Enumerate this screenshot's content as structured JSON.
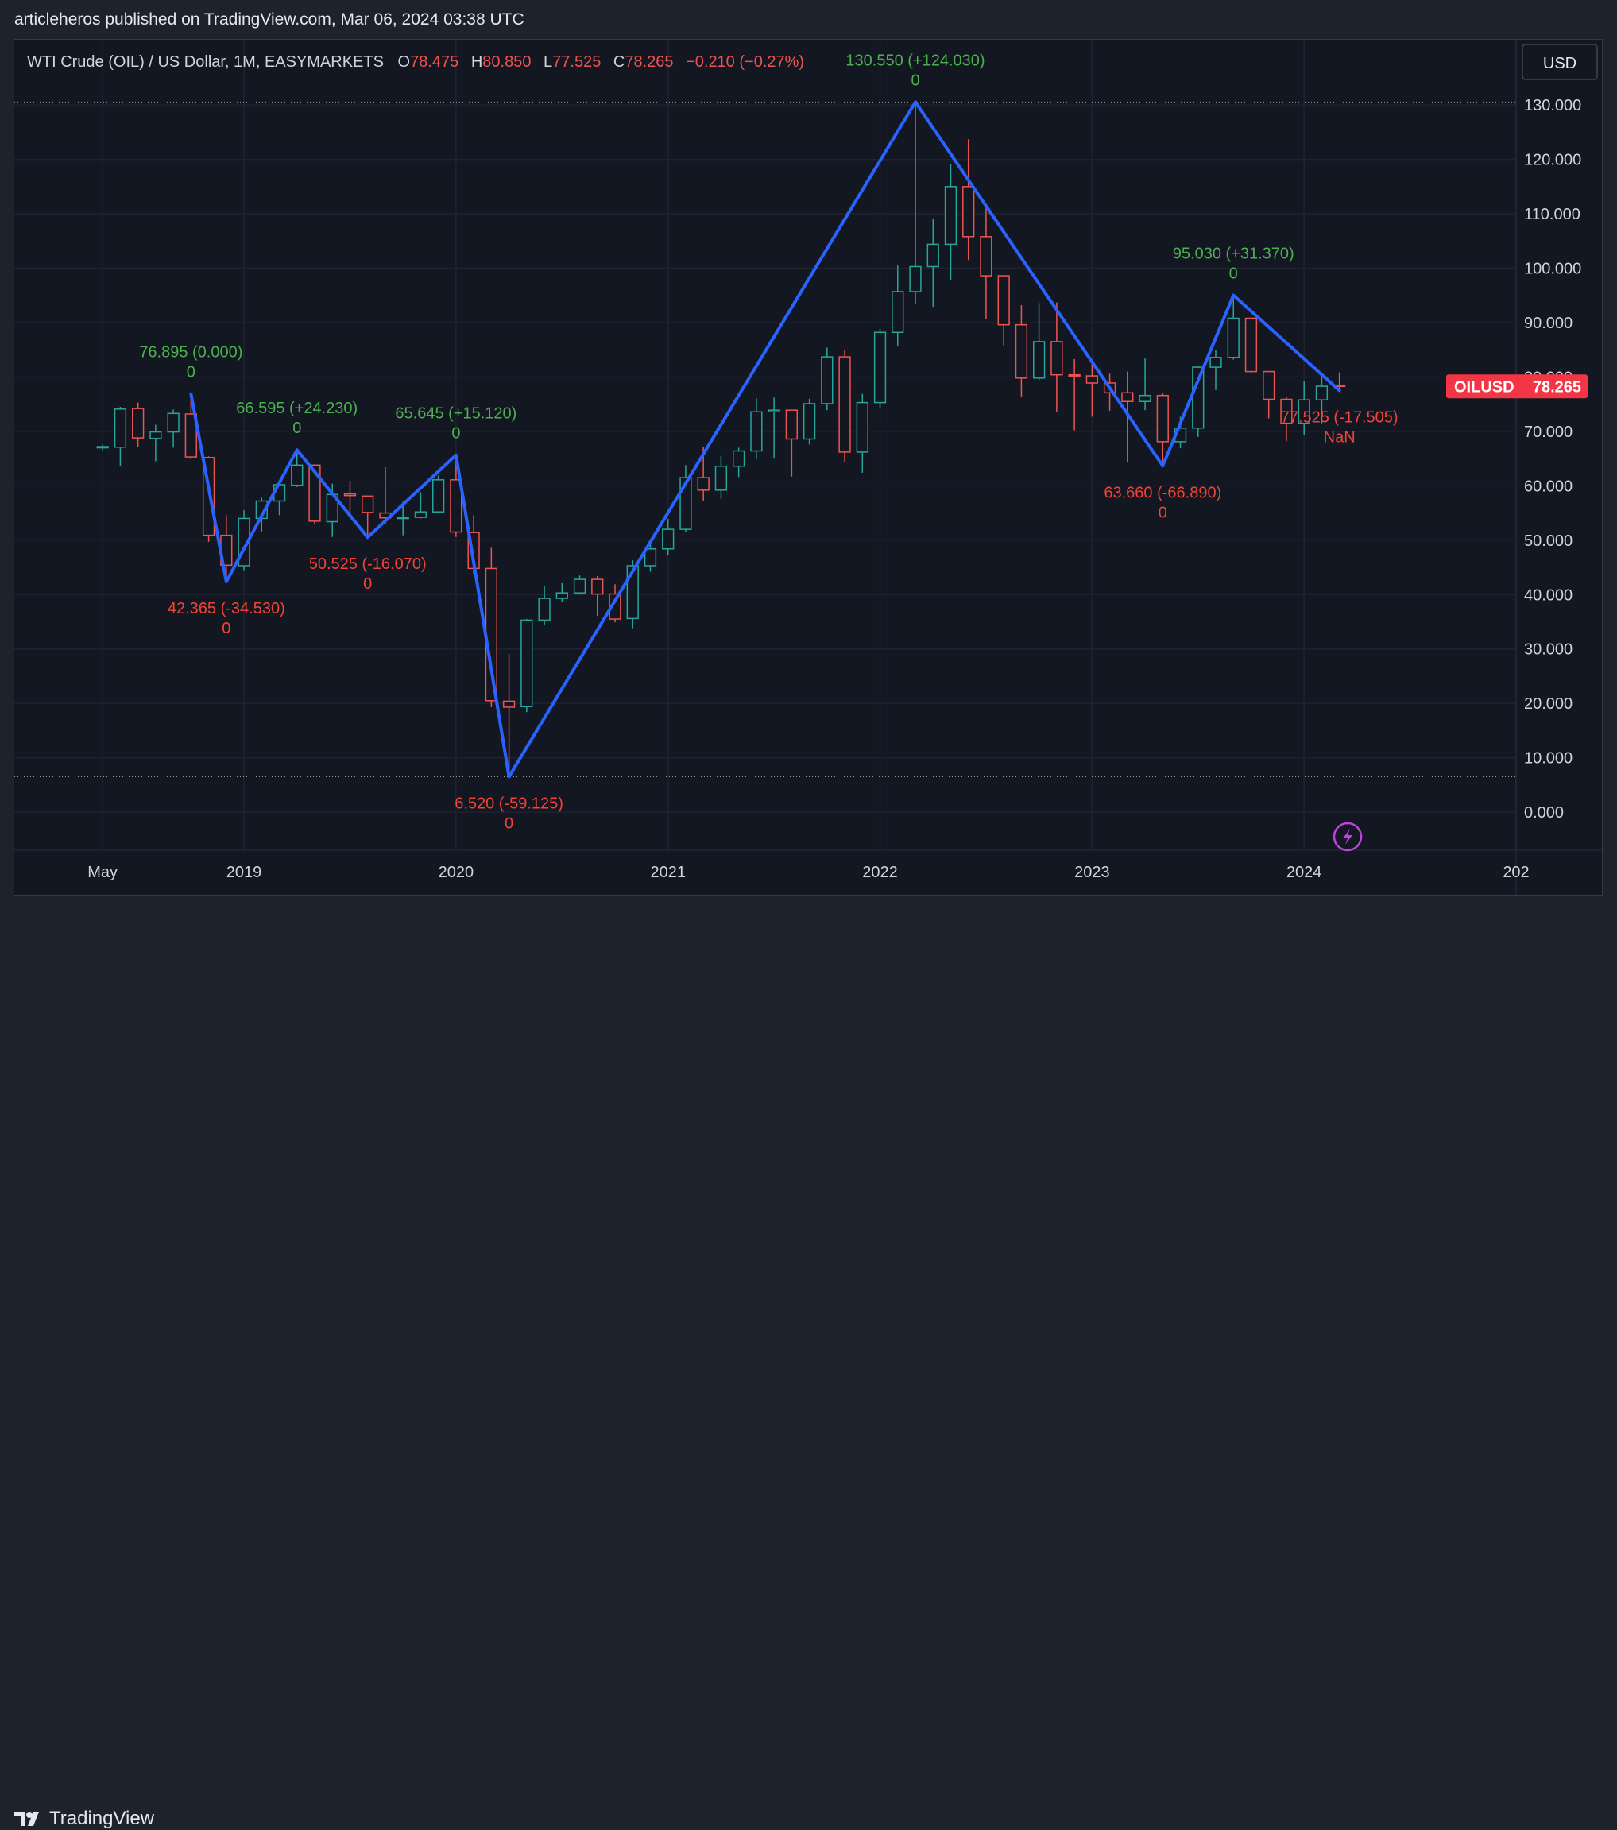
{
  "attribution": "articleheros published on TradingView.com, Mar 06, 2024 03:38 UTC",
  "legend": {
    "symbol": "WTI Crude (OIL) / US Dollar, 1M, EASYMARKETS",
    "o_label": "O",
    "o_value": "78.475",
    "h_label": "H",
    "h_value": "80.850",
    "l_label": "L",
    "l_value": "77.525",
    "c_label": "C",
    "c_value": "78.265",
    "change": "−0.210 (−0.27%)"
  },
  "currency_button": "USD",
  "price_badge": {
    "symbol": "OILUSD",
    "value": "78.265"
  },
  "branding": "TradingView",
  "colors": {
    "up": "#26a69a",
    "down": "#ef5350",
    "zigzag": "#2962ff",
    "label_up": "#4caf50",
    "label_down": "#f44336"
  },
  "chart_data": {
    "type": "candlestick",
    "interval": "1M",
    "y_ticks": [
      "130.000",
      "120.000",
      "110.000",
      "100.000",
      "90.000",
      "80.000",
      "70.000",
      "60.000",
      "50.000",
      "40.000",
      "30.000",
      "20.000",
      "10.000",
      "0.000"
    ],
    "x_ticks": [
      "May",
      "2019",
      "2020",
      "2021",
      "2022",
      "2023",
      "2024",
      "202"
    ],
    "ylim": [
      -7,
      142
    ],
    "xlim": [
      "2017-12",
      "2025-01"
    ],
    "grid": true,
    "candles": [
      {
        "t": "2018-05",
        "o": 67.2,
        "h": 67.6,
        "l": 66.5,
        "c": 67.2
      },
      {
        "t": "2018-06",
        "o": 67.1,
        "h": 74.5,
        "l": 63.6,
        "c": 74.1
      },
      {
        "t": "2018-07",
        "o": 74.2,
        "h": 75.3,
        "l": 67.1,
        "c": 68.8
      },
      {
        "t": "2018-08",
        "o": 68.7,
        "h": 71.2,
        "l": 64.5,
        "c": 69.9
      },
      {
        "t": "2018-09",
        "o": 69.9,
        "h": 74.0,
        "l": 67.0,
        "c": 73.3
      },
      {
        "t": "2018-10",
        "o": 73.2,
        "h": 76.9,
        "l": 64.9,
        "c": 65.3
      },
      {
        "t": "2018-11",
        "o": 65.2,
        "h": 65.4,
        "l": 49.7,
        "c": 50.9
      },
      {
        "t": "2018-12",
        "o": 50.9,
        "h": 54.6,
        "l": 42.4,
        "c": 45.4
      },
      {
        "t": "2019-01",
        "o": 45.3,
        "h": 55.5,
        "l": 44.5,
        "c": 54.0
      },
      {
        "t": "2019-02",
        "o": 54.0,
        "h": 57.8,
        "l": 51.6,
        "c": 57.2
      },
      {
        "t": "2019-03",
        "o": 57.2,
        "h": 60.8,
        "l": 54.6,
        "c": 60.2
      },
      {
        "t": "2019-04",
        "o": 60.1,
        "h": 66.6,
        "l": 59.8,
        "c": 63.8
      },
      {
        "t": "2019-05",
        "o": 63.8,
        "h": 63.9,
        "l": 53.0,
        "c": 53.5
      },
      {
        "t": "2019-06",
        "o": 53.4,
        "h": 60.4,
        "l": 50.6,
        "c": 58.4
      },
      {
        "t": "2019-07",
        "o": 58.5,
        "h": 60.9,
        "l": 54.5,
        "c": 58.2
      },
      {
        "t": "2019-08",
        "o": 58.1,
        "h": 58.2,
        "l": 50.5,
        "c": 55.1
      },
      {
        "t": "2019-09",
        "o": 55.0,
        "h": 63.4,
        "l": 52.9,
        "c": 54.1
      },
      {
        "t": "2019-10",
        "o": 54.0,
        "h": 57.1,
        "l": 50.9,
        "c": 54.2
      },
      {
        "t": "2019-11",
        "o": 54.2,
        "h": 58.8,
        "l": 54.0,
        "c": 55.2
      },
      {
        "t": "2019-12",
        "o": 55.2,
        "h": 61.9,
        "l": 55.0,
        "c": 61.1
      },
      {
        "t": "2020-01",
        "o": 61.1,
        "h": 65.6,
        "l": 50.6,
        "c": 51.5
      },
      {
        "t": "2020-02",
        "o": 51.4,
        "h": 54.6,
        "l": 43.8,
        "c": 44.8
      },
      {
        "t": "2020-03",
        "o": 44.8,
        "h": 48.6,
        "l": 19.3,
        "c": 20.5
      },
      {
        "t": "2020-04",
        "o": 20.4,
        "h": 29.1,
        "l": 6.5,
        "c": 19.3
      },
      {
        "t": "2020-05",
        "o": 19.4,
        "h": 35.5,
        "l": 18.4,
        "c": 35.3
      },
      {
        "t": "2020-06",
        "o": 35.3,
        "h": 41.6,
        "l": 34.4,
        "c": 39.3
      },
      {
        "t": "2020-07",
        "o": 39.3,
        "h": 42.1,
        "l": 38.7,
        "c": 40.3
      },
      {
        "t": "2020-08",
        "o": 40.3,
        "h": 43.5,
        "l": 40.0,
        "c": 42.8
      },
      {
        "t": "2020-09",
        "o": 42.8,
        "h": 43.4,
        "l": 36.1,
        "c": 40.1
      },
      {
        "t": "2020-10",
        "o": 40.1,
        "h": 41.9,
        "l": 34.9,
        "c": 35.5
      },
      {
        "t": "2020-11",
        "o": 35.6,
        "h": 46.3,
        "l": 33.8,
        "c": 45.3
      },
      {
        "t": "2020-12",
        "o": 45.3,
        "h": 49.4,
        "l": 44.2,
        "c": 48.4
      },
      {
        "t": "2021-01",
        "o": 48.4,
        "h": 53.9,
        "l": 47.3,
        "c": 52.0
      },
      {
        "t": "2021-02",
        "o": 52.0,
        "h": 63.8,
        "l": 51.5,
        "c": 61.5
      },
      {
        "t": "2021-03",
        "o": 61.5,
        "h": 67.1,
        "l": 57.3,
        "c": 59.2
      },
      {
        "t": "2021-04",
        "o": 59.2,
        "h": 65.5,
        "l": 57.6,
        "c": 63.6
      },
      {
        "t": "2021-05",
        "o": 63.6,
        "h": 67.0,
        "l": 61.6,
        "c": 66.4
      },
      {
        "t": "2021-06",
        "o": 66.4,
        "h": 76.1,
        "l": 64.9,
        "c": 73.6
      },
      {
        "t": "2021-07",
        "o": 73.6,
        "h": 76.2,
        "l": 65.0,
        "c": 73.9
      },
      {
        "t": "2021-08",
        "o": 73.9,
        "h": 74.0,
        "l": 61.7,
        "c": 68.6
      },
      {
        "t": "2021-09",
        "o": 68.6,
        "h": 76.0,
        "l": 67.6,
        "c": 75.1
      },
      {
        "t": "2021-10",
        "o": 75.1,
        "h": 85.4,
        "l": 73.9,
        "c": 83.7
      },
      {
        "t": "2021-11",
        "o": 83.7,
        "h": 84.9,
        "l": 64.4,
        "c": 66.2
      },
      {
        "t": "2021-12",
        "o": 66.2,
        "h": 76.9,
        "l": 62.4,
        "c": 75.3
      },
      {
        "t": "2022-01",
        "o": 75.3,
        "h": 88.8,
        "l": 74.3,
        "c": 88.2
      },
      {
        "t": "2022-02",
        "o": 88.2,
        "h": 100.5,
        "l": 85.7,
        "c": 95.7
      },
      {
        "t": "2022-03",
        "o": 95.7,
        "h": 130.55,
        "l": 93.5,
        "c": 100.3
      },
      {
        "t": "2022-04",
        "o": 100.3,
        "h": 109.0,
        "l": 92.9,
        "c": 104.4
      },
      {
        "t": "2022-05",
        "o": 104.4,
        "h": 119.2,
        "l": 97.8,
        "c": 115.0
      },
      {
        "t": "2022-06",
        "o": 115.0,
        "h": 123.7,
        "l": 101.5,
        "c": 105.8
      },
      {
        "t": "2022-07",
        "o": 105.8,
        "h": 111.0,
        "l": 90.6,
        "c": 98.6
      },
      {
        "t": "2022-08",
        "o": 98.6,
        "h": 97.6,
        "l": 85.8,
        "c": 89.6
      },
      {
        "t": "2022-09",
        "o": 89.6,
        "h": 93.2,
        "l": 76.4,
        "c": 79.8
      },
      {
        "t": "2022-10",
        "o": 79.8,
        "h": 93.6,
        "l": 79.4,
        "c": 86.5
      },
      {
        "t": "2022-11",
        "o": 86.5,
        "h": 93.7,
        "l": 73.6,
        "c": 80.4
      },
      {
        "t": "2022-12",
        "o": 80.4,
        "h": 83.3,
        "l": 70.2,
        "c": 80.2
      },
      {
        "t": "2023-01",
        "o": 80.2,
        "h": 82.6,
        "l": 72.7,
        "c": 78.9
      },
      {
        "t": "2023-02",
        "o": 78.9,
        "h": 80.6,
        "l": 73.8,
        "c": 77.1
      },
      {
        "t": "2023-03",
        "o": 77.1,
        "h": 81.0,
        "l": 64.4,
        "c": 75.5
      },
      {
        "t": "2023-04",
        "o": 75.5,
        "h": 83.4,
        "l": 73.9,
        "c": 76.6
      },
      {
        "t": "2023-05",
        "o": 76.6,
        "h": 77.0,
        "l": 63.66,
        "c": 68.1
      },
      {
        "t": "2023-06",
        "o": 68.1,
        "h": 72.7,
        "l": 66.9,
        "c": 70.6
      },
      {
        "t": "2023-07",
        "o": 70.6,
        "h": 82.0,
        "l": 69.0,
        "c": 81.8
      },
      {
        "t": "2023-08",
        "o": 81.8,
        "h": 84.9,
        "l": 77.6,
        "c": 83.6
      },
      {
        "t": "2023-09",
        "o": 83.6,
        "h": 95.03,
        "l": 83.2,
        "c": 90.8
      },
      {
        "t": "2023-10",
        "o": 90.8,
        "h": 90.4,
        "l": 80.6,
        "c": 81.0
      },
      {
        "t": "2023-11",
        "o": 81.0,
        "h": 80.1,
        "l": 72.4,
        "c": 75.9
      },
      {
        "t": "2023-12",
        "o": 75.9,
        "h": 76.3,
        "l": 68.2,
        "c": 71.5
      },
      {
        "t": "2024-01",
        "o": 71.5,
        "h": 79.2,
        "l": 69.3,
        "c": 75.8
      },
      {
        "t": "2024-02",
        "o": 75.8,
        "h": 80.6,
        "l": 71.5,
        "c": 78.3
      },
      {
        "t": "2024-03",
        "o": 78.5,
        "h": 80.85,
        "l": 77.53,
        "c": 78.27
      }
    ],
    "zigzag": [
      {
        "t": "2018-10",
        "v": 76.895
      },
      {
        "t": "2018-12",
        "v": 42.365
      },
      {
        "t": "2019-04",
        "v": 66.595
      },
      {
        "t": "2019-08",
        "v": 50.525
      },
      {
        "t": "2020-01",
        "v": 65.645
      },
      {
        "t": "2020-04",
        "v": 6.52
      },
      {
        "t": "2022-03",
        "v": 130.55
      },
      {
        "t": "2023-05",
        "v": 63.66
      },
      {
        "t": "2023-09",
        "v": 95.03
      },
      {
        "t": "2024-03",
        "v": 77.525
      }
    ],
    "pivot_labels": [
      {
        "text": "76.895 (0.000)",
        "sub": "0",
        "dir": "up",
        "t": "2018-10",
        "v": 76.895
      },
      {
        "text": "42.365 (-34.530)",
        "sub": "0",
        "dir": "down",
        "t": "2018-12",
        "v": 42.365
      },
      {
        "text": "66.595 (+24.230)",
        "sub": "0",
        "dir": "up",
        "t": "2019-04",
        "v": 66.595
      },
      {
        "text": "50.525 (-16.070)",
        "sub": "0",
        "dir": "down",
        "t": "2019-08",
        "v": 50.525
      },
      {
        "text": "65.645 (+15.120)",
        "sub": "0",
        "dir": "up",
        "t": "2020-01",
        "v": 65.645
      },
      {
        "text": "6.520 (-59.125)",
        "sub": "0",
        "dir": "down",
        "t": "2020-04",
        "v": 6.52
      },
      {
        "text": "130.550 (+124.030)",
        "sub": "0",
        "dir": "up",
        "t": "2022-03",
        "v": 130.55
      },
      {
        "text": "63.660 (-66.890)",
        "sub": "0",
        "dir": "down",
        "t": "2023-05",
        "v": 63.66
      },
      {
        "text": "95.030 (+31.370)",
        "sub": "0",
        "dir": "up",
        "t": "2023-09",
        "v": 95.03
      },
      {
        "text": "77.525 (-17.505)",
        "sub": "NaN",
        "dir": "down",
        "t": "2024-03",
        "v": 77.525
      }
    ],
    "reference_lines": [
      130.55,
      6.52
    ]
  }
}
